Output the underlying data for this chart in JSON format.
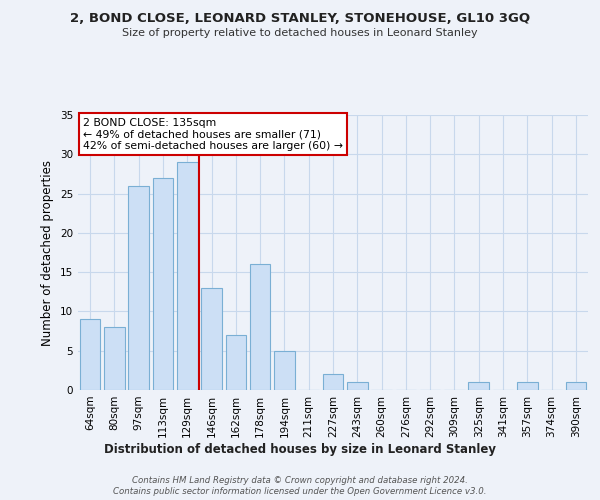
{
  "title": "2, BOND CLOSE, LEONARD STANLEY, STONEHOUSE, GL10 3GQ",
  "subtitle": "Size of property relative to detached houses in Leonard Stanley",
  "xlabel": "Distribution of detached houses by size in Leonard Stanley",
  "ylabel": "Number of detached properties",
  "bar_labels": [
    "64sqm",
    "80sqm",
    "97sqm",
    "113sqm",
    "129sqm",
    "146sqm",
    "162sqm",
    "178sqm",
    "194sqm",
    "211sqm",
    "227sqm",
    "243sqm",
    "260sqm",
    "276sqm",
    "292sqm",
    "309sqm",
    "325sqm",
    "341sqm",
    "357sqm",
    "374sqm",
    "390sqm"
  ],
  "bar_values": [
    9,
    8,
    26,
    27,
    29,
    13,
    7,
    16,
    5,
    0,
    2,
    1,
    0,
    0,
    0,
    0,
    1,
    0,
    1,
    0,
    1
  ],
  "ylim": [
    0,
    35
  ],
  "bar_color": "#ccdff5",
  "bar_edge_color": "#7aafd4",
  "grid_color": "#c8d8ec",
  "annotation_box_text": "2 BOND CLOSE: 135sqm\n← 49% of detached houses are smaller (71)\n42% of semi-detached houses are larger (60) →",
  "annotation_box_color": "#ffffff",
  "annotation_box_edge_color": "#cc0000",
  "vline_x_index": 4.5,
  "vline_color": "#cc0000",
  "footer_line1": "Contains HM Land Registry data © Crown copyright and database right 2024.",
  "footer_line2": "Contains public sector information licensed under the Open Government Licence v3.0.",
  "background_color": "#eef2f9"
}
